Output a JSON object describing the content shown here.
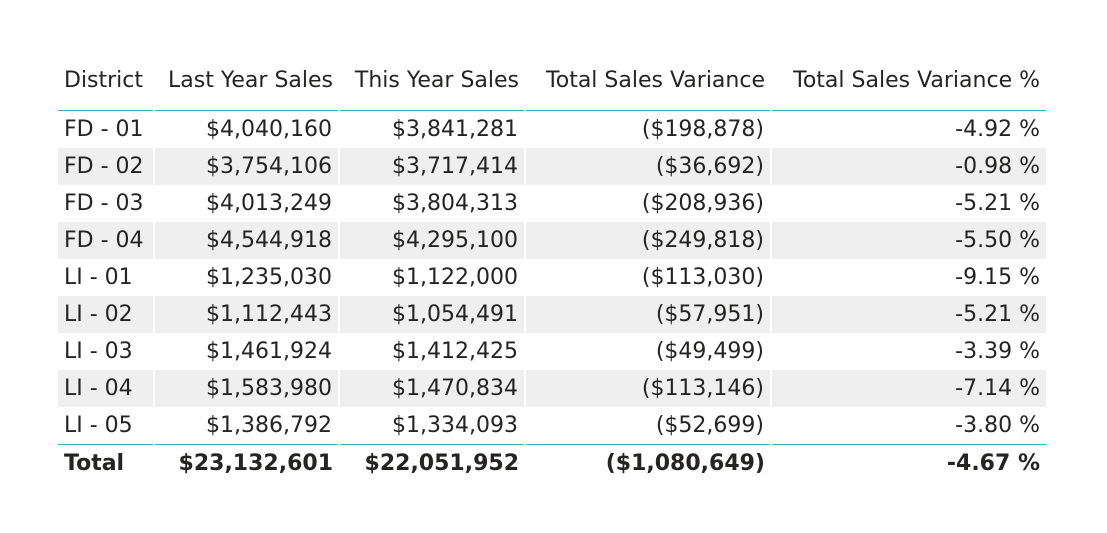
{
  "chart_data": {
    "type": "table",
    "columns": [
      "District",
      "Last Year Sales",
      "This Year Sales",
      "Total Sales Variance",
      "Total Sales Variance %"
    ],
    "rows": [
      [
        "FD - 01",
        "$4,040,160",
        "$3,841,281",
        "($198,878)",
        "-4.92 %"
      ],
      [
        "FD - 02",
        "$3,754,106",
        "$3,717,414",
        "($36,692)",
        "-0.98 %"
      ],
      [
        "FD - 03",
        "$4,013,249",
        "$3,804,313",
        "($208,936)",
        "-5.21 %"
      ],
      [
        "FD - 04",
        "$4,544,918",
        "$4,295,100",
        "($249,818)",
        "-5.50 %"
      ],
      [
        "LI - 01",
        "$1,235,030",
        "$1,122,000",
        "($113,030)",
        "-9.15 %"
      ],
      [
        "LI - 02",
        "$1,112,443",
        "$1,054,491",
        "($57,951)",
        "-5.21 %"
      ],
      [
        "LI - 03",
        "$1,461,924",
        "$1,412,425",
        "($49,499)",
        "-3.39 %"
      ],
      [
        "LI - 04",
        "$1,583,980",
        "$1,470,834",
        "($113,146)",
        "-7.14 %"
      ],
      [
        "LI - 05",
        "$1,386,792",
        "$1,334,093",
        "($52,699)",
        "-3.80 %"
      ]
    ],
    "total": [
      "Total",
      "$23,132,601",
      "$22,051,952",
      "($1,080,649)",
      "-4.67 %"
    ]
  },
  "colors": {
    "rule": "#2fb5b8",
    "band": "#efefef",
    "text": "#252423"
  }
}
